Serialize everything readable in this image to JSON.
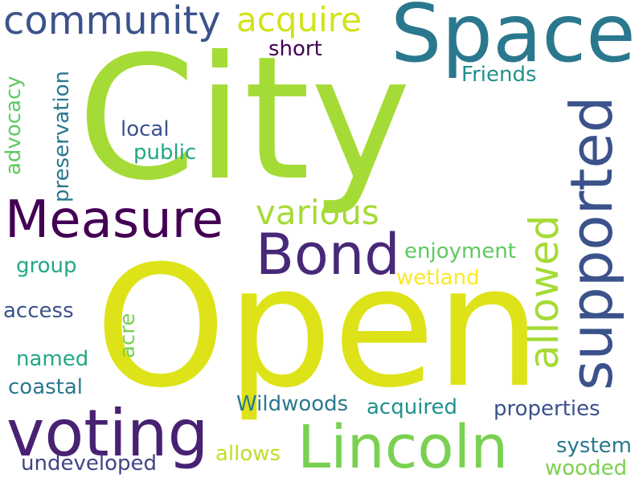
{
  "words": {
    "city": {
      "text": "City",
      "color": "#a5db36"
    },
    "open": {
      "text": "Open",
      "color": "#dde318"
    },
    "space": {
      "text": "Space",
      "color": "#2a788e"
    },
    "measure": {
      "text": "Measure",
      "color": "#440154"
    },
    "bond": {
      "text": "Bond",
      "color": "#482878"
    },
    "voting": {
      "text": "voting",
      "color": "#482173"
    },
    "lincoln": {
      "text": "Lincoln",
      "color": "#7ad151"
    },
    "community": {
      "text": "community",
      "color": "#3b528b"
    },
    "acquire": {
      "text": "acquire",
      "color": "#d2e21b"
    },
    "supported": {
      "text": "supported",
      "color": "#3b528b"
    },
    "allowed": {
      "text": "allowed",
      "color": "#a5db36"
    },
    "various": {
      "text": "various",
      "color": "#a5db36"
    },
    "short": {
      "text": "short",
      "color": "#440154"
    },
    "friends": {
      "text": "Friends",
      "color": "#21918c"
    },
    "local": {
      "text": "local",
      "color": "#3b528b"
    },
    "public": {
      "text": "public",
      "color": "#22a884"
    },
    "advocacy": {
      "text": "advocacy",
      "color": "#5ec962"
    },
    "preservation": {
      "text": "preservation",
      "color": "#2a788e"
    },
    "enjoyment": {
      "text": "enjoyment",
      "color": "#5ec962"
    },
    "wetland": {
      "text": "wetland",
      "color": "#fde725"
    },
    "group": {
      "text": "group",
      "color": "#22a884"
    },
    "access": {
      "text": "access",
      "color": "#3b528b"
    },
    "acre": {
      "text": "acre",
      "color": "#7ad151"
    },
    "named": {
      "text": "named",
      "color": "#22a884"
    },
    "coastal": {
      "text": "coastal",
      "color": "#2a788e"
    },
    "wildwoods": {
      "text": "Wildwoods",
      "color": "#2a788e"
    },
    "acquired": {
      "text": "acquired",
      "color": "#21918c"
    },
    "properties": {
      "text": "properties",
      "color": "#3b528b"
    },
    "system": {
      "text": "system",
      "color": "#2a788e"
    },
    "wooded": {
      "text": "wooded",
      "color": "#7ad151"
    },
    "allows": {
      "text": "allows",
      "color": "#bddf26"
    },
    "undeveloped": {
      "text": "undeveloped",
      "color": "#414487"
    }
  }
}
